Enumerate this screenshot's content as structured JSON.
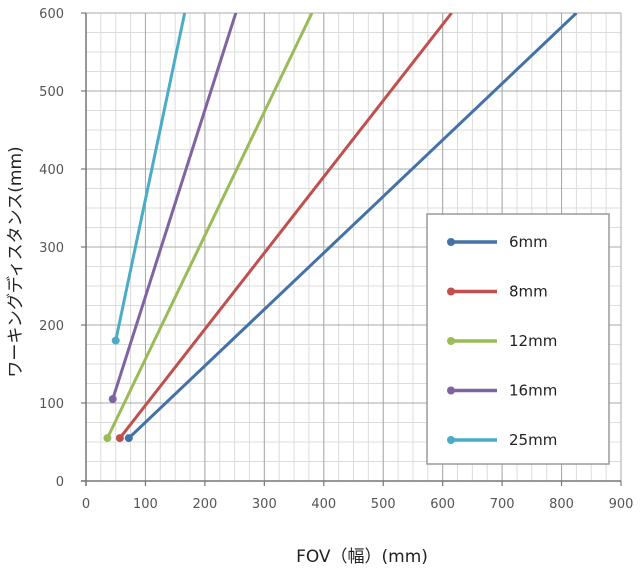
{
  "chart_data": {
    "type": "line",
    "title": "",
    "xlabel": "FOV（幅）(mm)",
    "ylabel": "ワーキングディスタンス(mm)",
    "xlim": [
      0,
      900
    ],
    "ylim": [
      0,
      600
    ],
    "xticks": [
      0,
      100,
      200,
      300,
      400,
      500,
      600,
      700,
      800,
      900
    ],
    "yticks": [
      0,
      100,
      200,
      300,
      400,
      500,
      600
    ],
    "x_minor_step": 25,
    "y_minor_step": 25,
    "grid": true,
    "legend_position": "right",
    "series": [
      {
        "name": "6mm",
        "color": "#4472a8",
        "x": [
          72,
          825
        ],
        "y": [
          55,
          600
        ]
      },
      {
        "name": "8mm",
        "color": "#c0504d",
        "x": [
          57,
          615
        ],
        "y": [
          55,
          600
        ]
      },
      {
        "name": "12mm",
        "color": "#9bbb59",
        "x": [
          36,
          380
        ],
        "y": [
          55,
          600
        ]
      },
      {
        "name": "16mm",
        "color": "#8064a2",
        "x": [
          45,
          252
        ],
        "y": [
          105,
          600
        ]
      },
      {
        "name": "25mm",
        "color": "#4bacc6",
        "x": [
          50,
          166
        ],
        "y": [
          180,
          600
        ]
      }
    ]
  }
}
